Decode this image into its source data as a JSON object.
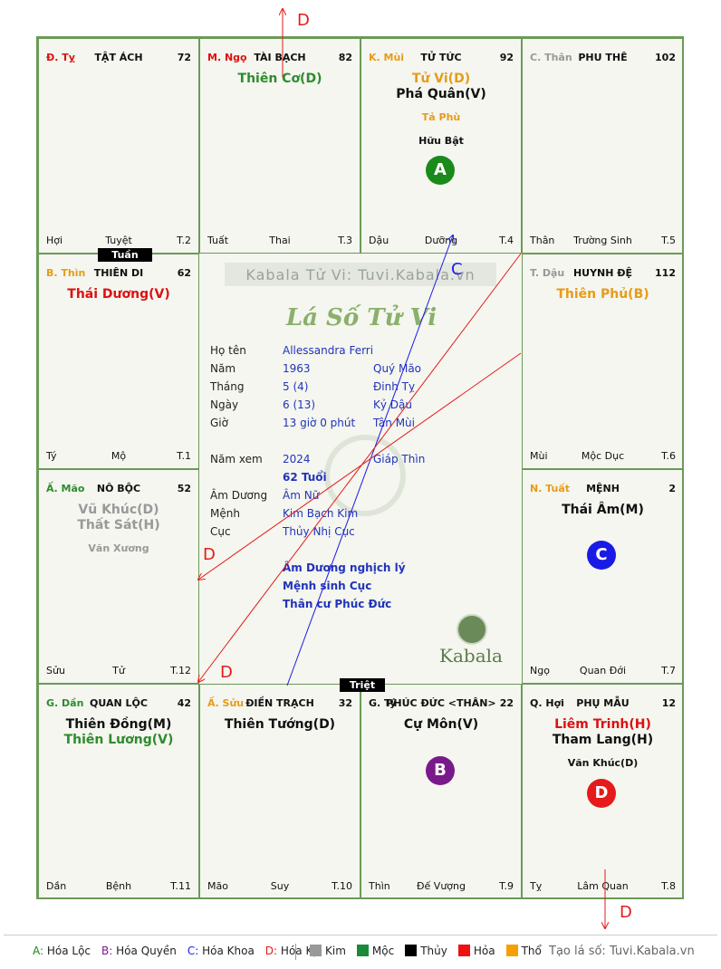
{
  "palaces": [
    {
      "branch": "Đ. Tỵ",
      "branch_color": "#dd1111",
      "name": "TẬT ÁCH",
      "num": "72",
      "footer": [
        "Hợi",
        "Tuyệt",
        "T.2"
      ],
      "stars": []
    },
    {
      "branch": "M. Ngọ",
      "branch_color": "#dd1111",
      "name": "TÀI BẠCH",
      "num": "82",
      "footer": [
        "Tuất",
        "Thai",
        "T.3"
      ],
      "stars": [
        {
          "text": "Thiên Cơ(D)",
          "color": "#2e8b2e",
          "cls": "major"
        }
      ]
    },
    {
      "branch": "K. Mùi",
      "branch_color": "#e89b17",
      "name": "TỬ TỨC",
      "num": "92",
      "footer": [
        "Dậu",
        "Dưỡng",
        "T.4"
      ],
      "stars": [
        {
          "text": "Tử Vi(D)",
          "color": "#e89b17",
          "cls": "major"
        },
        {
          "text": "Phá Quân(V)",
          "color": "#111111",
          "cls": "major"
        },
        {
          "text": "Tả Phù",
          "color": "#e89b17",
          "cls": "minor"
        },
        {
          "text": "Hữu Bật",
          "color": "#111111",
          "cls": "minor"
        }
      ]
    },
    {
      "branch": "C. Thân",
      "branch_color": "#999999",
      "name": "PHU THÊ",
      "num": "102",
      "footer": [
        "Thân",
        "Trường Sinh",
        "T.5"
      ],
      "stars": []
    },
    {
      "branch": "B. Thìn",
      "branch_color": "#e89b17",
      "name": "THIÊN DI",
      "num": "62",
      "footer": [
        "Tý",
        "Mộ",
        "T.1"
      ],
      "stars": [
        {
          "text": "Thái Dương(V)",
          "color": "#dd1111",
          "cls": "major"
        }
      ]
    },
    {
      "branch": "T. Dậu",
      "branch_color": "#999999",
      "name": "HUYNH ĐỆ",
      "num": "112",
      "footer": [
        "Mùi",
        "Mộc Dục",
        "T.6"
      ],
      "stars": [
        {
          "text": "Thiên Phủ(B)",
          "color": "#e89b17",
          "cls": "major"
        }
      ]
    },
    {
      "branch": "Ấ. Mão",
      "branch_color": "#2e8b2e",
      "name": "NÔ BỘC",
      "num": "52",
      "footer": [
        "Sửu",
        "Tử",
        "T.12"
      ],
      "stars": [
        {
          "text": "Vũ Khúc(D)",
          "color": "#999999",
          "cls": "major"
        },
        {
          "text": "Thất Sát(H)",
          "color": "#999999",
          "cls": "major"
        },
        {
          "text": "Văn Xương",
          "color": "#999999",
          "cls": "minor"
        }
      ]
    },
    {
      "branch": "N. Tuất",
      "branch_color": "#e89b17",
      "name": "MỆNH",
      "num": "2",
      "footer": [
        "Ngọ",
        "Quan Đới",
        "T.7"
      ],
      "stars": [
        {
          "text": "Thái Âm(M)",
          "color": "#111111",
          "cls": "major"
        }
      ]
    },
    {
      "branch": "G. Dần",
      "branch_color": "#2e8b2e",
      "name": "QUAN LỘC",
      "num": "42",
      "footer": [
        "Dần",
        "Bệnh",
        "T.11"
      ],
      "stars": [
        {
          "text": "Thiên Đồng(M)",
          "color": "#111111",
          "cls": "major"
        },
        {
          "text": "Thiên Lương(V)",
          "color": "#2e8b2e",
          "cls": "major"
        }
      ]
    },
    {
      "branch": "Ấ. Sửu",
      "branch_color": "#e89b17",
      "name": "ĐIỀN TRẠCH",
      "num": "32",
      "footer": [
        "Mão",
        "Suy",
        "T.10"
      ],
      "stars": [
        {
          "text": "Thiên Tướng(D)",
          "color": "#111111",
          "cls": "major"
        }
      ]
    },
    {
      "branch": "G. Tý",
      "branch_color": "#111111",
      "name": "PHÚC ĐỨC <THÂN>",
      "num": "22",
      "footer": [
        "Thìn",
        "Đế Vượng",
        "T.9"
      ],
      "stars": [
        {
          "text": "Cự Môn(V)",
          "color": "#111111",
          "cls": "major"
        }
      ]
    },
    {
      "branch": "Q. Hợi",
      "branch_color": "#111111",
      "name": "PHỤ MẪU",
      "num": "12",
      "footer": [
        "Tỵ",
        "Lâm Quan",
        "T.8"
      ],
      "stars": [
        {
          "text": "Liêm Trinh(H)",
          "color": "#dd1111",
          "cls": "major"
        },
        {
          "text": "Tham Lang(H)",
          "color": "#111111",
          "cls": "major"
        },
        {
          "text": "Văn Khúc(D)",
          "color": "#111111",
          "cls": "minor"
        }
      ]
    }
  ],
  "markers": [
    {
      "letter": "A",
      "color": "#1a8a1a"
    },
    {
      "letter": "C",
      "color": "#1a1ae6"
    },
    {
      "letter": "B",
      "color": "#7a1a8a"
    },
    {
      "letter": "D",
      "color": "#e61a1a"
    }
  ],
  "tags": {
    "tuan": "Tuần",
    "triet": "Triệt"
  },
  "arrow_labels": {
    "top": "D",
    "c_mid": "C",
    "d_left1": "D",
    "d_left2": "D",
    "bottom": "D"
  },
  "center": {
    "site_title": "Kabala Tử Vi: Tuvi.Kabala.vn",
    "title": "Lá Số Tử Vi",
    "rows": [
      {
        "label": "Họ tên",
        "v1": "Allessandra Ferri",
        "v2": ""
      },
      {
        "label": "Năm",
        "v1": "1963",
        "v2": "Quý Mão"
      },
      {
        "label": "Tháng",
        "v1": "5  (4)",
        "v2": "Đinh Tỵ"
      },
      {
        "label": "Ngày",
        "v1": "6  (13)",
        "v2": "Kỷ Dậu"
      },
      {
        "label": "Giờ",
        "v1": "13 giờ 0 phút",
        "v2": "Tân Mùi"
      },
      {
        "label": "Năm xem",
        "v1": "2024",
        "v2": "Giáp Thìn"
      },
      {
        "label": "",
        "v1": "62 Tuổi",
        "v2": ""
      },
      {
        "label": "Âm Dương",
        "v1": "Âm Nữ",
        "v2": ""
      },
      {
        "label": "Mệnh",
        "v1": "Kim Bạch Kim",
        "v2": ""
      },
      {
        "label": "Cục",
        "v1": "Thủy Nhị Cục",
        "v2": ""
      }
    ],
    "notes": [
      "Âm Dương nghịch lý",
      "Mệnh sinh Cục",
      "Thân cư Phúc Đức"
    ],
    "logo_text": "Kabala"
  },
  "legend": {
    "hoa": [
      {
        "key": "A:",
        "text": "Hóa Lộc",
        "color": "#1a8a1a"
      },
      {
        "key": "B:",
        "text": "Hóa Quyền",
        "color": "#7a1a8a"
      },
      {
        "key": "C:",
        "text": "Hóa Khoa",
        "color": "#1a1ae6"
      },
      {
        "key": "D:",
        "text": "Hóa Kị",
        "color": "#e61a1a"
      }
    ],
    "elements": [
      {
        "name": "Kim",
        "color": "#999999"
      },
      {
        "name": "Mộc",
        "color": "#1a8a3a"
      },
      {
        "name": "Thủy",
        "color": "#000000"
      },
      {
        "name": "Hỏa",
        "color": "#ee1111"
      },
      {
        "name": "Thổ",
        "color": "#f5a000"
      }
    ],
    "site": "Tạo lá số: Tuvi.Kabala.vn"
  }
}
